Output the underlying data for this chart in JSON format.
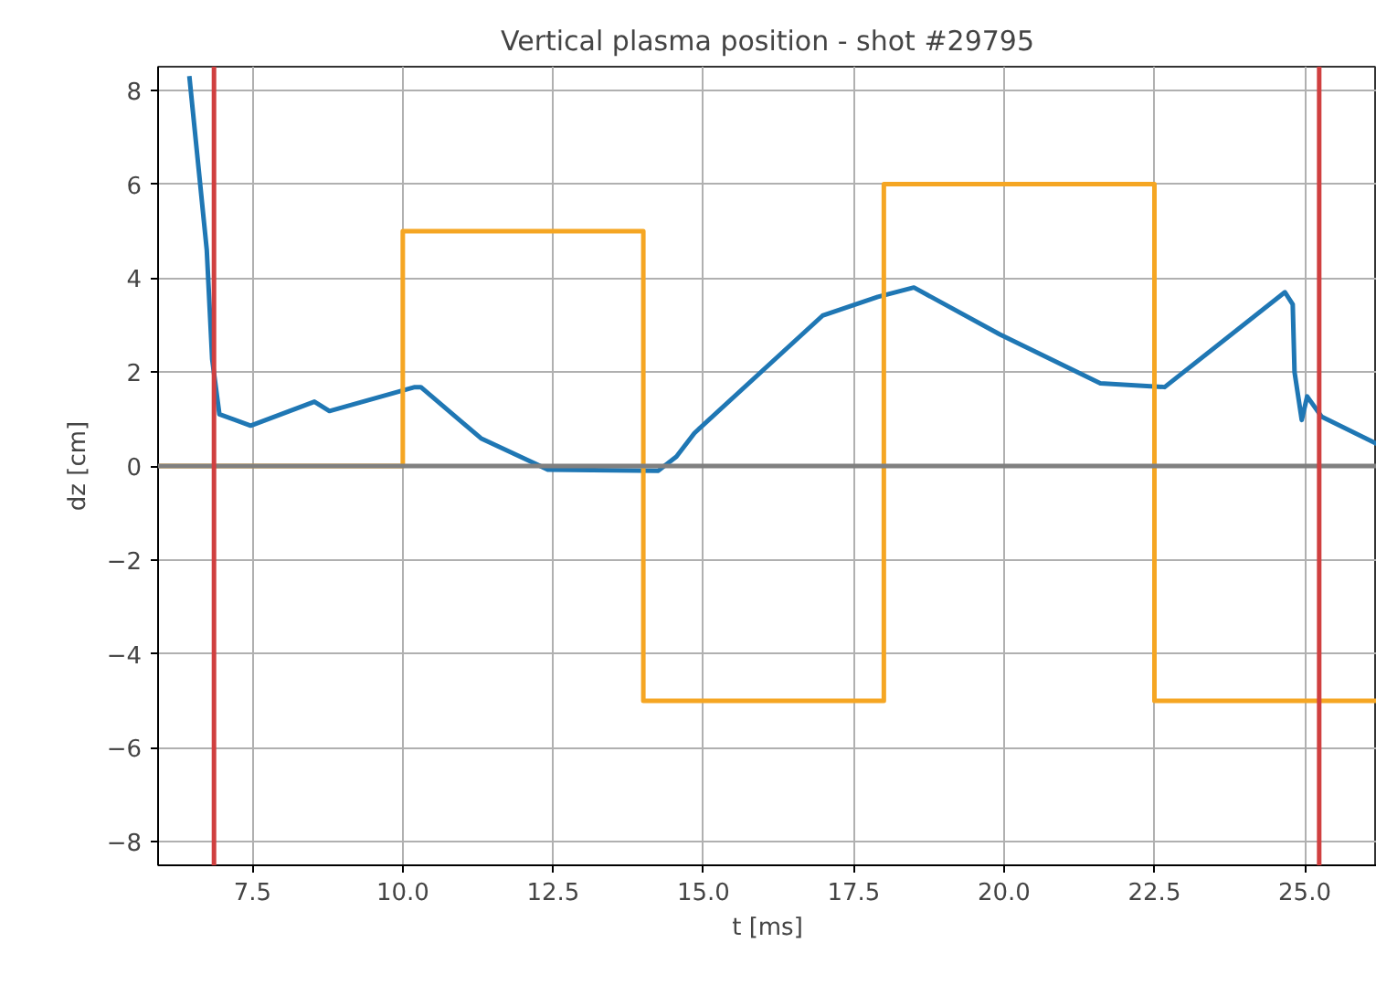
{
  "chart_data": {
    "type": "line",
    "title": "Vertical plasma position - shot #29795",
    "xlabel": "t [ms]",
    "ylabel": "dz [cm]",
    "xlim": [
      5.93,
      26.2
    ],
    "ylim": [
      -8.5,
      8.5
    ],
    "xticks": [
      {
        "value": 7.5,
        "label": "7.5"
      },
      {
        "value": 10.0,
        "label": "10.0"
      },
      {
        "value": 12.5,
        "label": "12.5"
      },
      {
        "value": 15.0,
        "label": "15.0"
      },
      {
        "value": 17.5,
        "label": "17.5"
      },
      {
        "value": 20.0,
        "label": "20.0"
      },
      {
        "value": 22.5,
        "label": "22.5"
      },
      {
        "value": 25.0,
        "label": "25.0"
      }
    ],
    "yticks": [
      -8,
      -6,
      -4,
      -2,
      0,
      2,
      4,
      6,
      8
    ],
    "grid": true,
    "series": [
      {
        "color": "#1f77b4",
        "x": [
          6.45,
          6.74,
          6.83,
          6.95,
          7.47,
          8.53,
          8.78,
          10.2,
          10.3,
          11.3,
          12.42,
          14.25,
          14.55,
          14.85,
          16.98,
          17.9,
          18.5,
          19.93,
          21.6,
          22.67,
          24.67,
          24.8,
          24.83,
          24.95,
          25.04,
          25.28,
          26.2
        ],
        "values": [
          8.3,
          4.6,
          2.27,
          1.1,
          0.86,
          1.37,
          1.17,
          1.68,
          1.68,
          0.59,
          -0.08,
          -0.1,
          0.2,
          0.7,
          3.2,
          3.6,
          3.8,
          2.8,
          1.76,
          1.68,
          3.7,
          3.44,
          2.0,
          0.98,
          1.48,
          1.05,
          0.47
        ]
      },
      {
        "type": "step",
        "color": "#f5a623",
        "x": [
          5.93,
          10.0,
          14.0,
          18.0,
          22.5,
          26.2
        ],
        "values": [
          0,
          5,
          -5,
          6,
          -5,
          -5
        ]
      }
    ],
    "ref_lines": [
      {
        "axis": "y",
        "value": 0,
        "color": "#808080"
      },
      {
        "axis": "x",
        "value": 6.86,
        "color": "#d04040"
      },
      {
        "axis": "x",
        "value": 25.24,
        "color": "#d04040"
      }
    ]
  }
}
